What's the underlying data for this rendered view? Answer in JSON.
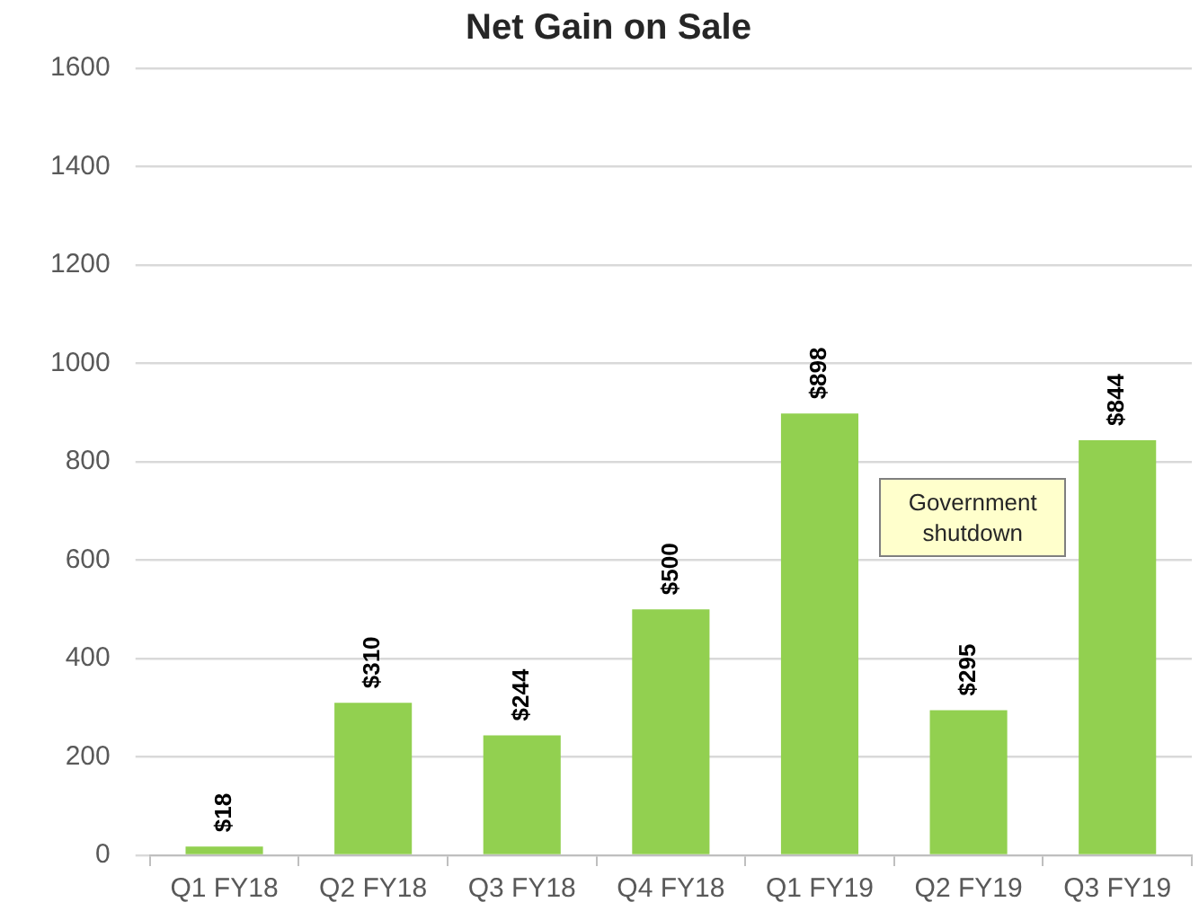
{
  "chart_data": {
    "type": "bar",
    "title": "Net Gain on Sale",
    "categories": [
      "Q1 FY18",
      "Q2 FY18",
      "Q3 FY18",
      "Q4 FY18",
      "Q1 FY19",
      "Q2 FY19",
      "Q3 FY19"
    ],
    "values": [
      18,
      310,
      244,
      500,
      898,
      295,
      844
    ],
    "value_labels": [
      "$18",
      "$310",
      "$244",
      "$500",
      "$898",
      "$295",
      "$844"
    ],
    "color": "#92d050",
    "ylim": [
      0,
      1600
    ],
    "yticks": [
      0,
      200,
      400,
      600,
      800,
      1000,
      1200,
      1400,
      1600
    ],
    "grid": "y",
    "annotations": [
      "Government shutdown"
    ]
  }
}
